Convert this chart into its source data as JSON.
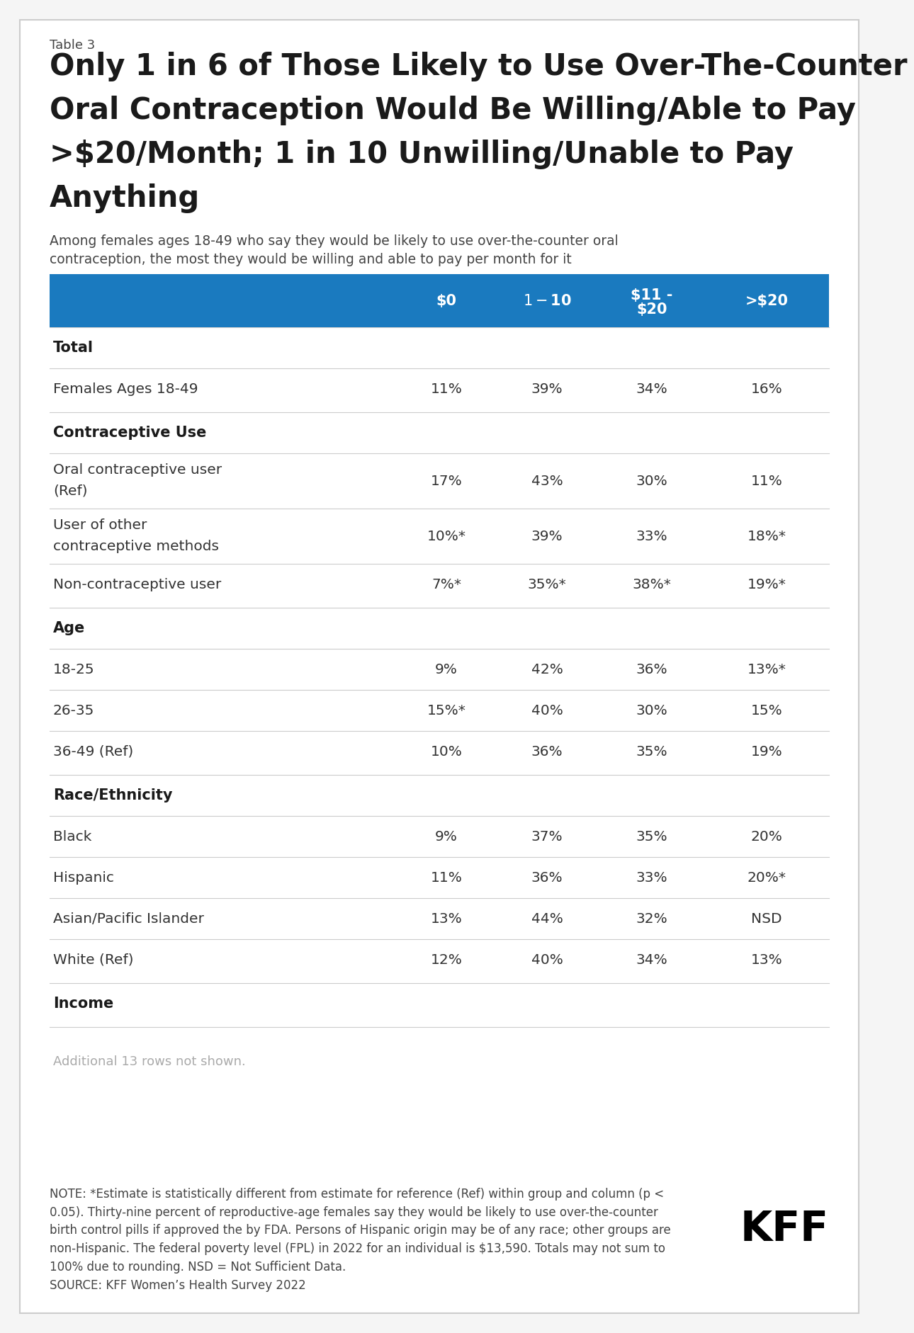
{
  "table_label": "Table 3",
  "title_line1": "Only 1 in 6 of Those Likely to Use Over-The-Counter",
  "title_line2": "Oral Contraception Would Be Willing/Able to Pay",
  "title_line3": ">$20/Month; 1 in 10 Unwilling/Unable to Pay",
  "title_line4": "Anything",
  "subtitle_line1": "Among females ages 18-49 who say they would be likely to use over-the-counter oral",
  "subtitle_line2": "contraception, the most they would be willing and able to pay per month for it",
  "header_bg": "#1a7abf",
  "header_text_color": "#ffffff",
  "col_headers_line1": [
    "",
    "$0",
    "$1 - $10",
    "$11 -",
    ">$20"
  ],
  "col_headers_line2": [
    "",
    "",
    "",
    "$20",
    ""
  ],
  "sections": [
    {
      "section_header": "Total",
      "rows": [
        {
          "label": "Females Ages 18-49",
          "label2": "",
          "values": [
            "11%",
            "39%",
            "34%",
            "16%"
          ]
        }
      ]
    },
    {
      "section_header": "Contraceptive Use",
      "rows": [
        {
          "label": "Oral contraceptive user",
          "label2": "(Ref)",
          "values": [
            "17%",
            "43%",
            "30%",
            "11%"
          ]
        },
        {
          "label": "User of other",
          "label2": "contraceptive methods",
          "values": [
            "10%*",
            "39%",
            "33%",
            "18%*"
          ]
        },
        {
          "label": "Non-contraceptive user",
          "label2": "",
          "values": [
            "7%*",
            "35%*",
            "38%*",
            "19%*"
          ]
        }
      ]
    },
    {
      "section_header": "Age",
      "rows": [
        {
          "label": "18-25",
          "label2": "",
          "values": [
            "9%",
            "42%",
            "36%",
            "13%*"
          ]
        },
        {
          "label": "26-35",
          "label2": "",
          "values": [
            "15%*",
            "40%",
            "30%",
            "15%"
          ]
        },
        {
          "label": "36-49 (Ref)",
          "label2": "",
          "values": [
            "10%",
            "36%",
            "35%",
            "19%"
          ]
        }
      ]
    },
    {
      "section_header": "Race/Ethnicity",
      "rows": [
        {
          "label": "Black",
          "label2": "",
          "values": [
            "9%",
            "37%",
            "35%",
            "20%"
          ]
        },
        {
          "label": "Hispanic",
          "label2": "",
          "values": [
            "11%",
            "36%",
            "33%",
            "20%*"
          ]
        },
        {
          "label": "Asian/Pacific Islander",
          "label2": "",
          "values": [
            "13%",
            "44%",
            "32%",
            "NSD"
          ]
        },
        {
          "label": "White (Ref)",
          "label2": "",
          "values": [
            "12%",
            "40%",
            "34%",
            "13%"
          ]
        }
      ]
    },
    {
      "section_header": "Income",
      "rows": []
    }
  ],
  "additional_rows_note": "Additional 13 rows not shown.",
  "note": "NOTE: *Estimate is statistically different from estimate for reference (Ref) within group and column (p <\n0.05). Thirty-nine percent of reproductive-age females say they would be likely to use over-the-counter\nbirth control pills if approved the by FDA. Persons of Hispanic origin may be of any race; other groups are\nnon-Hispanic. The federal poverty level (FPL) in 2022 for an individual is $13,590. Totals may not sum to\n100% due to rounding. NSD = Not Sufficient Data.\nSOURCE: KFF Women’s Health Survey 2022",
  "bg_color": "#f5f5f5",
  "inner_bg": "#ffffff",
  "text_color": "#333333",
  "border_color": "#cccccc"
}
